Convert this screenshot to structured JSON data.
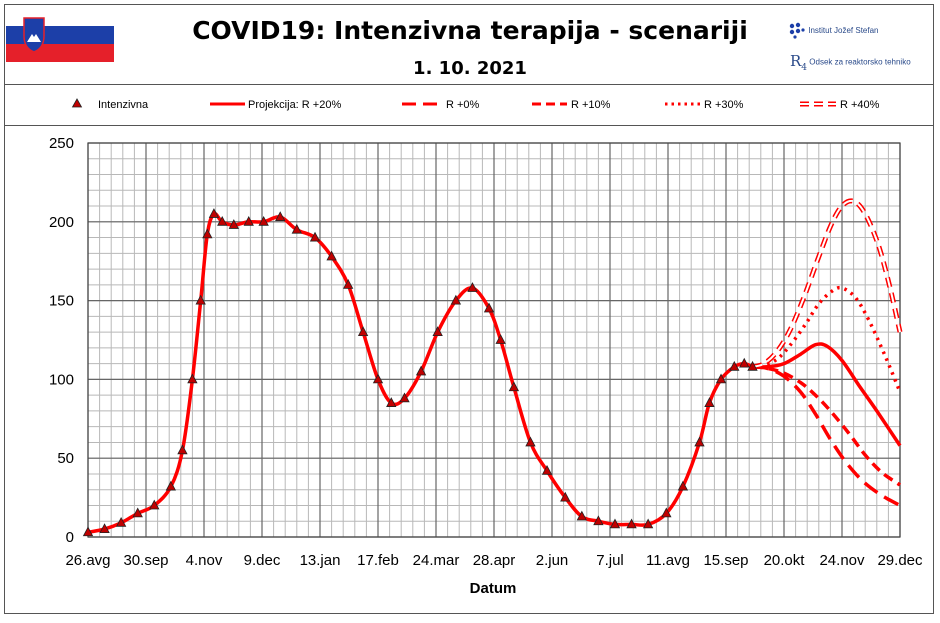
{
  "header": {
    "title": "COVID19: Intenzivna terapija - scenariji",
    "date": "1. 10. 2021",
    "institute": "Institut Jožef Stefan",
    "department": "Odsek za reaktorsko tehniko",
    "flag_colors": [
      "#ffffff",
      "#1c3fa8",
      "#e5202a"
    ]
  },
  "chart_data": {
    "type": "line",
    "xlabel": "Datum",
    "ylabel": "",
    "ylim": [
      0,
      250
    ],
    "yticks": [
      0,
      50,
      100,
      150,
      200,
      250
    ],
    "x_tick_labels": [
      "26.avg",
      "30.sep",
      "4.nov",
      "9.dec",
      "13.jan",
      "17.feb",
      "24.mar",
      "28.apr",
      "2.jun",
      "7.jul",
      "11.avg",
      "15.sep",
      "20.okt",
      "24.nov",
      "29.dec"
    ],
    "grid": true,
    "legend_position": "top",
    "accent_color": "#ff0000",
    "series": [
      {
        "name": "Intenzivna",
        "style": "markers",
        "x": [
          "2020-08-26",
          "2020-09-05",
          "2020-09-15",
          "2020-09-25",
          "2020-10-05",
          "2020-10-15",
          "2020-10-22",
          "2020-10-28",
          "2020-11-02",
          "2020-11-06",
          "2020-11-10",
          "2020-11-15",
          "2020-11-22",
          "2020-12-01",
          "2020-12-10",
          "2020-12-20",
          "2020-12-30",
          "2021-01-10",
          "2021-01-20",
          "2021-01-30",
          "2021-02-08",
          "2021-02-17",
          "2021-02-25",
          "2021-03-05",
          "2021-03-15",
          "2021-03-25",
          "2021-04-05",
          "2021-04-15",
          "2021-04-25",
          "2021-05-02",
          "2021-05-10",
          "2021-05-20",
          "2021-05-30",
          "2021-06-10",
          "2021-06-20",
          "2021-06-30",
          "2021-07-10",
          "2021-07-20",
          "2021-07-30",
          "2021-08-10",
          "2021-08-20",
          "2021-08-30",
          "2021-09-05",
          "2021-09-12",
          "2021-09-20",
          "2021-09-26",
          "2021-10-01"
        ],
        "y": [
          3,
          5,
          9,
          15,
          20,
          32,
          55,
          100,
          150,
          192,
          205,
          200,
          198,
          200,
          200,
          203,
          195,
          190,
          178,
          160,
          130,
          100,
          85,
          88,
          105,
          130,
          150,
          158,
          145,
          125,
          95,
          60,
          42,
          25,
          13,
          10,
          8,
          8,
          8,
          15,
          32,
          60,
          85,
          100,
          108,
          110,
          108
        ]
      },
      {
        "name": "Projekcija: R +20%",
        "style": "solid",
        "x": [
          "2021-10-01",
          "2021-10-10",
          "2021-10-20",
          "2021-10-30",
          "2021-11-08",
          "2021-11-15",
          "2021-11-24",
          "2021-12-05",
          "2021-12-15",
          "2021-12-29"
        ],
        "y": [
          108,
          108,
          110,
          116,
          122,
          121,
          112,
          95,
          80,
          58
        ]
      },
      {
        "name": "R +0%",
        "style": "long-dash",
        "x": [
          "2021-10-01",
          "2021-10-10",
          "2021-10-20",
          "2021-10-30",
          "2021-11-08",
          "2021-11-17",
          "2021-11-26",
          "2021-12-06",
          "2021-12-17",
          "2021-12-29"
        ],
        "y": [
          108,
          107,
          102,
          92,
          78,
          62,
          48,
          36,
          27,
          20
        ]
      },
      {
        "name": "R +10%",
        "style": "dash",
        "x": [
          "2021-10-01",
          "2021-10-10",
          "2021-10-20",
          "2021-10-30",
          "2021-11-08",
          "2021-11-17",
          "2021-11-28",
          "2021-12-08",
          "2021-12-18",
          "2021-12-29"
        ],
        "y": [
          108,
          107,
          104,
          98,
          90,
          80,
          66,
          52,
          41,
          33
        ]
      },
      {
        "name": "R +30%",
        "style": "dotted",
        "x": [
          "2021-10-01",
          "2021-10-08",
          "2021-10-16",
          "2021-10-24",
          "2021-11-02",
          "2021-11-10",
          "2021-11-18",
          "2021-11-24",
          "2021-12-02",
          "2021-12-10",
          "2021-12-20",
          "2021-12-29"
        ],
        "y": [
          108,
          109,
          113,
          122,
          135,
          148,
          156,
          158,
          152,
          138,
          115,
          92
        ]
      },
      {
        "name": "R +40%",
        "style": "double",
        "x": [
          "2021-10-01",
          "2021-10-08",
          "2021-10-16",
          "2021-10-24",
          "2021-11-01",
          "2021-11-09",
          "2021-11-17",
          "2021-11-24",
          "2021-12-01",
          "2021-12-08",
          "2021-12-16",
          "2021-12-23",
          "2021-12-29"
        ],
        "y": [
          108,
          110,
          118,
          132,
          152,
          175,
          197,
          210,
          213,
          205,
          185,
          158,
          130
        ]
      }
    ]
  }
}
